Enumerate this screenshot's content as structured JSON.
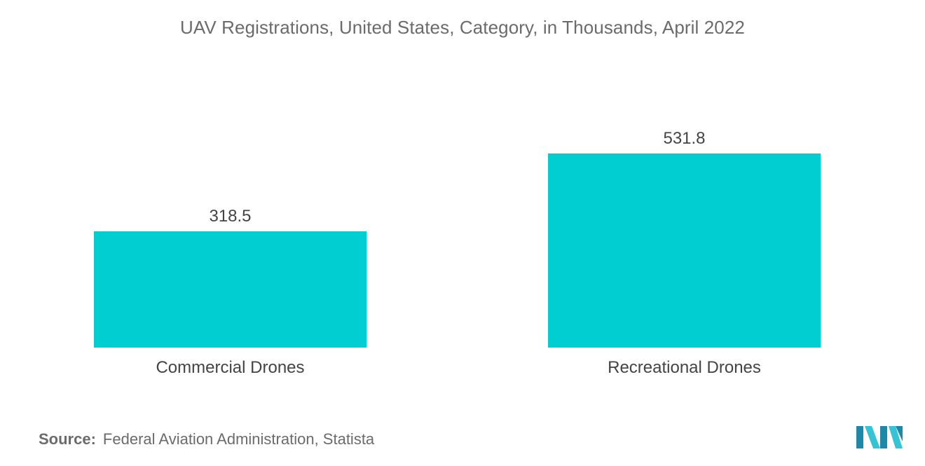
{
  "chart_data": {
    "type": "bar",
    "title": "UAV Registrations, United States, Category, in Thousands, April 2022",
    "categories": [
      "Commercial Drones",
      "Recreational Drones"
    ],
    "values": [
      318.5,
      531.8
    ],
    "value_labels": [
      "318.5",
      "531.8"
    ],
    "xlabel": "",
    "ylabel": "",
    "ylim": [
      0,
      600
    ],
    "grid": false,
    "legend": "none",
    "bar_color": "#00CED1"
  },
  "footer": {
    "source_label": "Source:",
    "source_text": "Federal Aviation Administration, Statista"
  },
  "logo": {
    "icon": "mordor-intelligence-logo",
    "colors": [
      "#1E88A8",
      "#35C4D6"
    ]
  }
}
